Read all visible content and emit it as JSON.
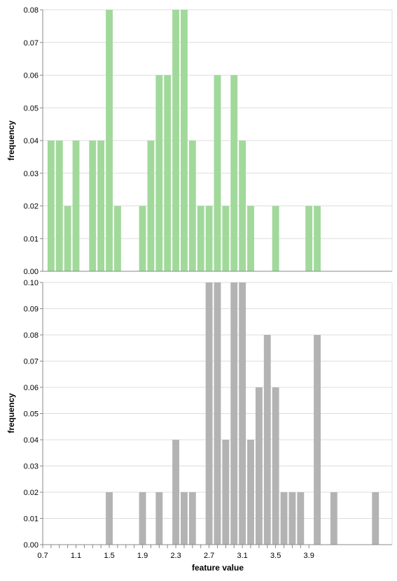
{
  "chart_data": [
    {
      "type": "bar",
      "panel": "top",
      "bin_width": 0.1,
      "color": "#a1d99b",
      "ylabel": "frequency",
      "xlabel": "",
      "ylim": [
        0,
        0.08
      ],
      "xlim": [
        0.7,
        4.9
      ],
      "y_ticks": [
        "0.00",
        "0.01",
        "0.02",
        "0.03",
        "0.04",
        "0.05",
        "0.06",
        "0.07",
        "0.08"
      ],
      "grid": true,
      "bins": [
        {
          "x": 0.8,
          "y": 0.04
        },
        {
          "x": 0.9,
          "y": 0.04
        },
        {
          "x": 1.0,
          "y": 0.02
        },
        {
          "x": 1.1,
          "y": 0.04
        },
        {
          "x": 1.3,
          "y": 0.04
        },
        {
          "x": 1.4,
          "y": 0.04
        },
        {
          "x": 1.5,
          "y": 0.08
        },
        {
          "x": 1.6,
          "y": 0.02
        },
        {
          "x": 1.9,
          "y": 0.02
        },
        {
          "x": 2.0,
          "y": 0.04
        },
        {
          "x": 2.1,
          "y": 0.06
        },
        {
          "x": 2.2,
          "y": 0.06
        },
        {
          "x": 2.3,
          "y": 0.08
        },
        {
          "x": 2.4,
          "y": 0.08
        },
        {
          "x": 2.5,
          "y": 0.04
        },
        {
          "x": 2.6,
          "y": 0.02
        },
        {
          "x": 2.7,
          "y": 0.02
        },
        {
          "x": 2.8,
          "y": 0.06
        },
        {
          "x": 2.9,
          "y": 0.02
        },
        {
          "x": 3.0,
          "y": 0.06
        },
        {
          "x": 3.1,
          "y": 0.04
        },
        {
          "x": 3.2,
          "y": 0.02
        },
        {
          "x": 3.5,
          "y": 0.02
        },
        {
          "x": 3.9,
          "y": 0.02
        },
        {
          "x": 4.0,
          "y": 0.02
        }
      ]
    },
    {
      "type": "bar",
      "panel": "bottom",
      "bin_width": 0.1,
      "color": "#b3b3b3",
      "ylabel": "frequency",
      "xlabel": "feature value",
      "ylim": [
        0,
        0.1
      ],
      "xlim": [
        0.7,
        4.9
      ],
      "y_ticks": [
        "0.00",
        "0.01",
        "0.02",
        "0.03",
        "0.04",
        "0.05",
        "0.06",
        "0.07",
        "0.08",
        "0.09",
        "0.10"
      ],
      "x_tick_values": [
        0.7,
        0.8,
        0.9,
        1.0,
        1.1,
        1.2,
        1.3,
        1.4,
        1.5,
        1.6,
        1.7,
        1.8,
        1.9,
        2.0,
        2.1,
        2.2,
        2.3,
        2.4,
        2.5,
        2.6,
        2.7,
        2.8,
        2.9,
        3.0,
        3.1,
        3.2,
        3.3,
        3.4,
        3.5,
        3.6,
        3.7,
        3.8,
        3.9
      ],
      "x_tick_labels": [
        {
          "x": 0.7,
          "label": "0.7"
        },
        {
          "x": 1.1,
          "label": "1.1"
        },
        {
          "x": 1.5,
          "label": "1.5"
        },
        {
          "x": 1.9,
          "label": "1.9"
        },
        {
          "x": 2.3,
          "label": "2.3"
        },
        {
          "x": 2.7,
          "label": "2.7"
        },
        {
          "x": 3.1,
          "label": "3.1"
        },
        {
          "x": 3.5,
          "label": "3.5"
        },
        {
          "x": 3.9,
          "label": "3.9"
        }
      ],
      "grid": true,
      "bins": [
        {
          "x": 1.5,
          "y": 0.02
        },
        {
          "x": 1.9,
          "y": 0.02
        },
        {
          "x": 2.1,
          "y": 0.02
        },
        {
          "x": 2.3,
          "y": 0.04
        },
        {
          "x": 2.4,
          "y": 0.02
        },
        {
          "x": 2.5,
          "y": 0.02
        },
        {
          "x": 2.7,
          "y": 0.1
        },
        {
          "x": 2.8,
          "y": 0.1
        },
        {
          "x": 2.9,
          "y": 0.04
        },
        {
          "x": 3.0,
          "y": 0.1
        },
        {
          "x": 3.1,
          "y": 0.1
        },
        {
          "x": 3.2,
          "y": 0.04
        },
        {
          "x": 3.3,
          "y": 0.06
        },
        {
          "x": 3.4,
          "y": 0.08
        },
        {
          "x": 3.5,
          "y": 0.06
        },
        {
          "x": 3.6,
          "y": 0.02
        },
        {
          "x": 3.7,
          "y": 0.02
        },
        {
          "x": 3.8,
          "y": 0.02
        },
        {
          "x": 4.0,
          "y": 0.08
        },
        {
          "x": 4.2,
          "y": 0.02
        },
        {
          "x": 4.7,
          "y": 0.02
        }
      ]
    }
  ]
}
